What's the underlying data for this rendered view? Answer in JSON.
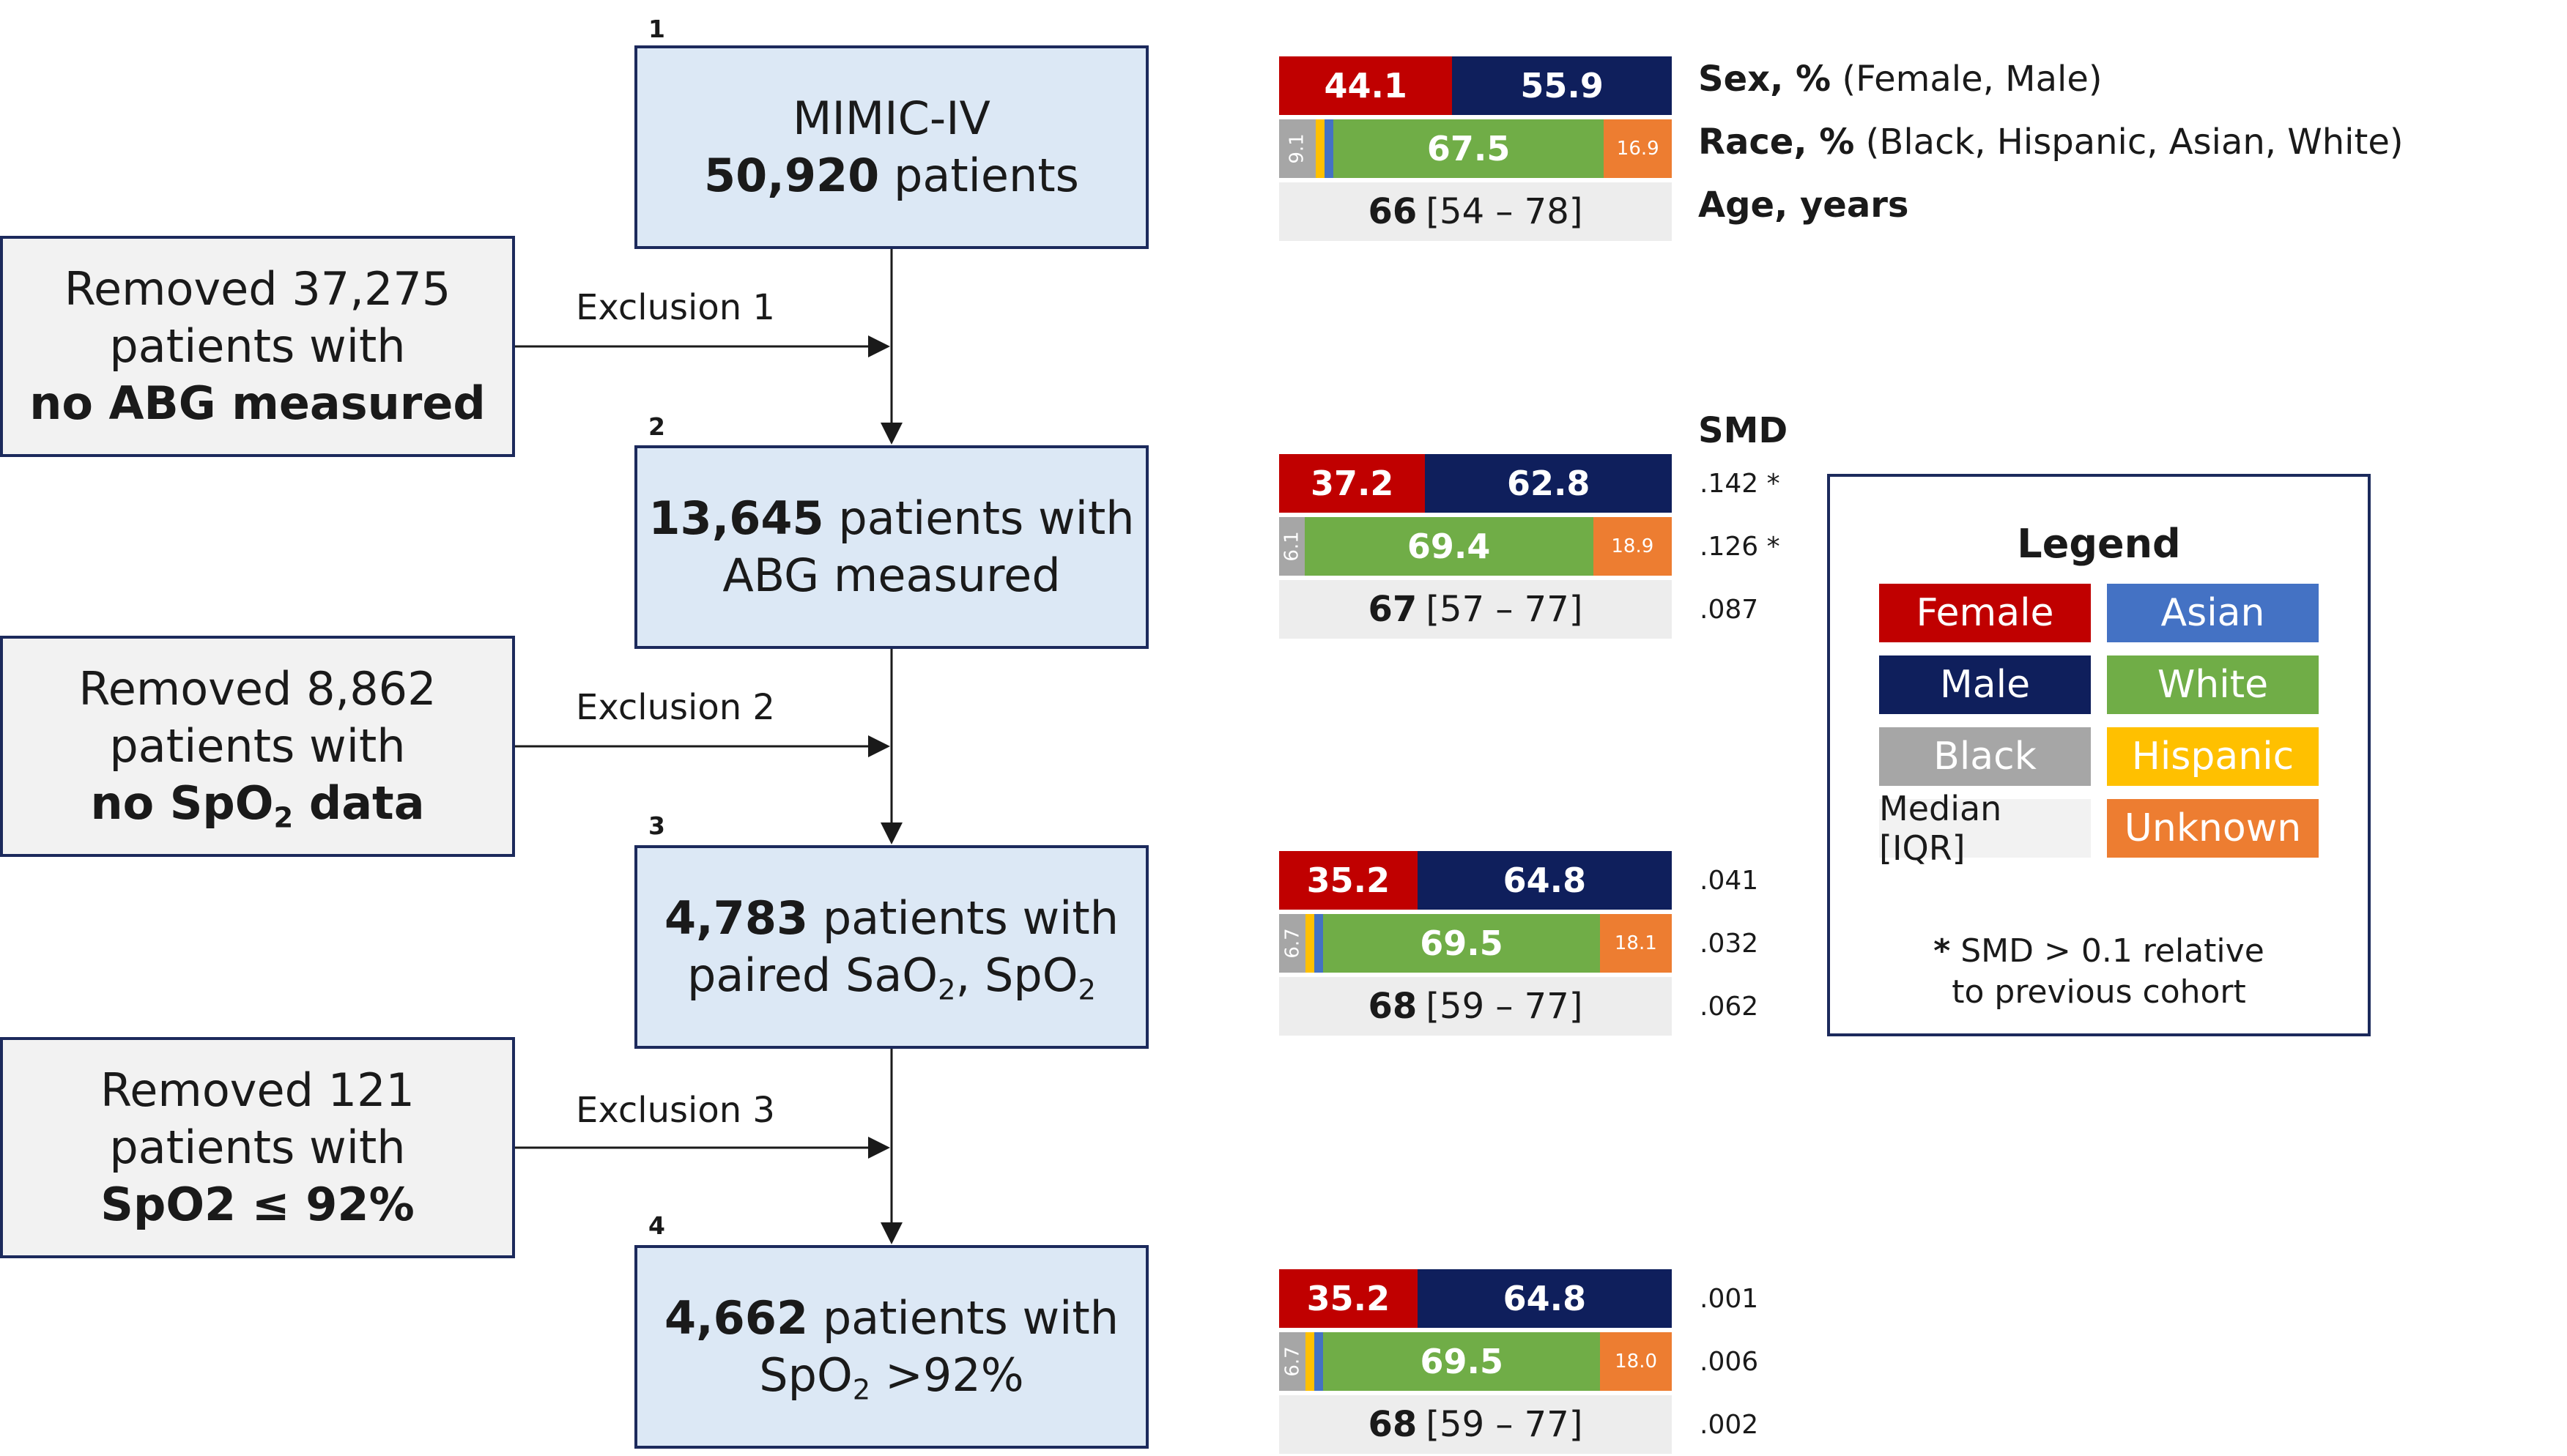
{
  "steps": [
    {
      "num": "1",
      "line1": "MIMIC-IV",
      "count": "50,920",
      "line2_suffix": " patients"
    },
    {
      "num": "2",
      "count": "13,645",
      "line1_suffix": " patients with",
      "line2": "ABG measured"
    },
    {
      "num": "3",
      "count": "4,783",
      "line1_suffix": " patients with",
      "line2_pre": "paired SaO",
      "line2_mid": ", SpO"
    },
    {
      "num": "4",
      "count": "4,662",
      "line1_suffix": " patients with",
      "line2_pre": "SpO",
      "line2_post": " >92%"
    }
  ],
  "exclusions": [
    {
      "label": "Exclusion 1",
      "line1": "Removed 37,275",
      "line2": "patients with",
      "line3": "no ABG measured"
    },
    {
      "label": "Exclusion 2",
      "line1": "Removed 8,862",
      "line2": "patients with",
      "line3_pre": "no SpO",
      "line3_sub": "2",
      "line3_post": " data"
    },
    {
      "label": "Exclusion 3",
      "line1": "Removed 121",
      "line2": "patients with",
      "line3": "SpO2 ≤ 92%"
    }
  ],
  "subscript_2": "2",
  "row_labels": {
    "sex_bold": "Sex, %",
    "sex_rest": " (Female, Male)",
    "race_bold": "Race, %",
    "race_rest": " (Black, Hispanic, Asian, White)",
    "age_bold": "Age, years"
  },
  "smd_header": "SMD",
  "cohorts": [
    {
      "sex": {
        "female": 44.1,
        "male": 55.9,
        "female_label": "44.1",
        "male_label": "55.9"
      },
      "race": {
        "black": 9.1,
        "hispanic": 2.2,
        "asian": 2.2,
        "white": 67.5,
        "unknown": 16.9,
        "black_label": "9.1",
        "white_label": "67.5",
        "unknown_label": "16.9"
      },
      "age": {
        "median": "66",
        "iqr": "[54 – 78]"
      },
      "smd": null
    },
    {
      "sex": {
        "female": 37.2,
        "male": 62.8,
        "female_label": "37.2",
        "male_label": "62.8"
      },
      "race": {
        "black": 6.1,
        "hispanic": 0,
        "asian": 0,
        "white": 69.4,
        "unknown": 18.9,
        "black_label": "6.1",
        "white_label": "69.4",
        "unknown_label": "18.9"
      },
      "age": {
        "median": "67",
        "iqr": "[57 – 77]"
      },
      "smd": {
        "sex": ".142 *",
        "race": ".126 *",
        "age": ".087"
      }
    },
    {
      "sex": {
        "female": 35.2,
        "male": 64.8,
        "female_label": "35.2",
        "male_label": "64.8"
      },
      "race": {
        "black": 6.7,
        "hispanic": 2.2,
        "asian": 2.2,
        "white": 69.5,
        "unknown": 18.1,
        "black_label": "6.7",
        "white_label": "69.5",
        "unknown_label": "18.1"
      },
      "age": {
        "median": "68",
        "iqr": "[59 – 77]"
      },
      "smd": {
        "sex": ".041",
        "race": ".032",
        "age": ".062"
      }
    },
    {
      "sex": {
        "female": 35.2,
        "male": 64.8,
        "female_label": "35.2",
        "male_label": "64.8"
      },
      "race": {
        "black": 6.7,
        "hispanic": 2.2,
        "asian": 2.2,
        "white": 69.5,
        "unknown": 18.0,
        "black_label": "6.7",
        "white_label": "69.5",
        "unknown_label": "18.0"
      },
      "age": {
        "median": "68",
        "iqr": "[59 – 77]"
      },
      "smd": {
        "sex": ".001",
        "race": ".006",
        "age": ".002"
      }
    }
  ],
  "legend": {
    "title": "Legend",
    "female": "Female",
    "asian": "Asian",
    "male": "Male",
    "white": "White",
    "black": "Black",
    "hispanic": "Hispanic",
    "median": "Median [IQR]",
    "unknown": "Unknown",
    "note_star": "*",
    "note_line1": " SMD > 0.1 relative",
    "note_line2": "to previous cohort"
  },
  "colors": {
    "female": "#c00000",
    "male": "#0f1f5c",
    "black": "#a6a6a6",
    "hispanic": "#ffc000",
    "asian": "#4472c4",
    "white": "#70ad47",
    "unknown": "#ed7d31",
    "box_blue": "#dce8f5",
    "box_gray": "#f2f2f2",
    "border": "#1c2a5c"
  }
}
